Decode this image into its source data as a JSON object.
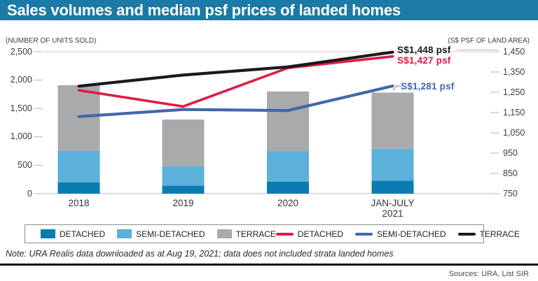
{
  "header": {
    "title": "Sales volumes and median psf prices of landed homes"
  },
  "axis_units": {
    "left": "(NUMBER OF UNITS SOLD)",
    "right": "(S$ PSF OF LAND AREA)"
  },
  "colors": {
    "header_bar": "#1b7aa6",
    "bar_detached": "#0a7cb2",
    "bar_semi_detached": "#5bb1d9",
    "bar_terrace": "#a8aaac",
    "line_detached": "#e11a45",
    "line_semi_detached": "#4267ae",
    "line_terrace": "#1a1a1a"
  },
  "chart_data": {
    "type": "bar",
    "subtype": "stacked bars with overlaid lines, dual axis",
    "categories": [
      "2018",
      "2019",
      "2020",
      "JAN-JULY\n2021"
    ],
    "bar_series": [
      {
        "name": "DETACHED",
        "axis": "left",
        "color": "#0a7cb2",
        "values": [
          200,
          140,
          210,
          230
        ]
      },
      {
        "name": "SEMI-DETACHED",
        "axis": "left",
        "color": "#5bb1d9",
        "values": [
          555,
          345,
          540,
          560
        ]
      },
      {
        "name": "TERRACE",
        "axis": "left",
        "color": "#a8aaac",
        "values": [
          1155,
          820,
          1050,
          990
        ]
      }
    ],
    "line_series": [
      {
        "name": "DETACHED",
        "axis": "right",
        "color": "#e11a45",
        "values": [
          1260,
          1180,
          1370,
          1427
        ]
      },
      {
        "name": "SEMI-DETACHED",
        "axis": "right",
        "color": "#4267ae",
        "values": [
          1130,
          1165,
          1160,
          1281
        ]
      },
      {
        "name": "TERRACE",
        "axis": "right",
        "color": "#1a1a1a",
        "values": [
          1280,
          1335,
          1375,
          1448
        ]
      }
    ],
    "left_axis": {
      "label": "(NUMBER OF UNITS SOLD)",
      "min": 0,
      "max": 2500,
      "ticks": [
        "2,500",
        "2,000",
        "1,500",
        "1,000",
        "500",
        "0"
      ]
    },
    "right_axis": {
      "label": "(S$ PSF OF LAND AREA)",
      "min": 750,
      "max": 1450,
      "ticks": [
        "1,450",
        "1,350",
        "1,250",
        "1,150",
        "1,050",
        "950",
        "850",
        "750"
      ]
    },
    "annotations": [
      {
        "series": "TERRACE",
        "text": "S$1,448 psf",
        "color": "#1a1a1a"
      },
      {
        "series": "DETACHED",
        "text": "S$1,427 psf",
        "color": "#e11a45"
      },
      {
        "series": "SEMI-DETACHED",
        "text": "S$1,281 psf",
        "color": "#4267ae"
      }
    ],
    "gridlines": "top line and zero baseline only",
    "legend_position": "boxed row below chart"
  },
  "note": "Note: URA Realis data downloaded as at Aug 19, 2021; data does not included strata landed homes",
  "sources": "Sources: URA, List SIR"
}
